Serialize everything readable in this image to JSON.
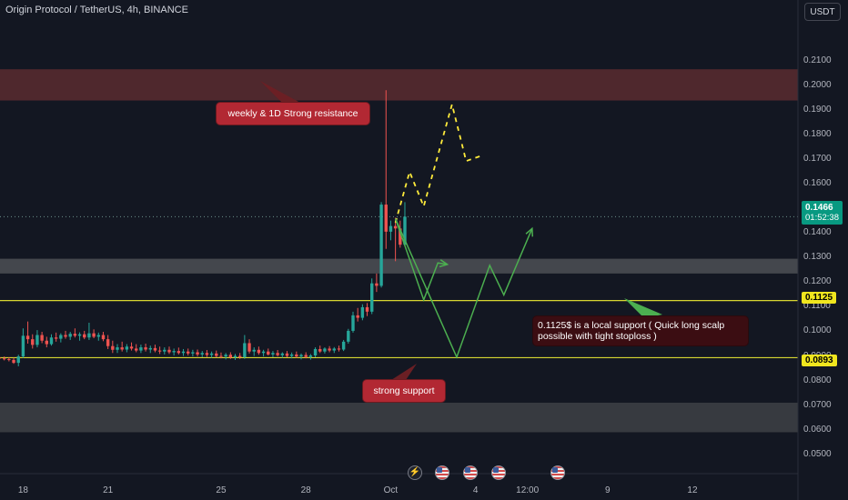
{
  "header": {
    "title": "Origin Protocol / TetherUS, 4h, BINANCE",
    "currency_button": "USDT"
  },
  "annotations": {
    "resistance": "weekly & 1D Strong resistance",
    "support": "strong support",
    "local_support": "0.1125$ is a local support ( Quick long scalp possible with tight stoploss )"
  },
  "price_tags": {
    "current_price": "0.1466",
    "countdown": "01:52:38",
    "level_upper": "0.1125",
    "level_lower": "0.0893"
  },
  "event_icons": [
    "lightning-event-icon",
    "us-flag-icon",
    "us-flag-icon",
    "us-flag-icon",
    "us-flag-icon"
  ],
  "colors": {
    "background": "#131722",
    "bull": "#26a69a",
    "bear": "#ef5350",
    "level_line": "#d6d631",
    "forecast_green": "#4caf50",
    "forecast_yellow": "#ffeb3b",
    "annotation_red": "#b22833",
    "price_tag_green": "#089981"
  },
  "chart_data": {
    "type": "candlestick",
    "title": "Origin Protocol / TetherUS, 4h, BINANCE",
    "y_ticks": [
      0.05,
      0.06,
      0.07,
      0.08,
      0.09,
      0.1,
      0.11,
      0.12,
      0.13,
      0.14,
      0.15,
      0.16,
      0.17,
      0.18,
      0.19,
      0.2,
      0.21
    ],
    "y_tick_labels": [
      "0.0500",
      "0.0600",
      "0.0700",
      "0.0800",
      "0.0900",
      "0.1000",
      "0.1100",
      "0.1200",
      "0.1300",
      "0.1400",
      "0.1500",
      "0.1600",
      "0.1700",
      "0.1800",
      "0.1900",
      "0.2000",
      "0.2100"
    ],
    "ylim": [
      0.0455,
      0.2195
    ],
    "x_tick_labels": [
      "18",
      "21",
      "25",
      "28",
      "Oct",
      "4",
      "12:00",
      "9",
      "12"
    ],
    "x_tick_index": [
      5,
      23,
      47,
      65,
      83,
      101,
      112,
      129,
      147
    ],
    "x_index_range": [
      0,
      173
    ],
    "candles": [
      {
        "o": 0.0893,
        "h": 0.0902,
        "l": 0.0885,
        "c": 0.089
      },
      {
        "o": 0.089,
        "h": 0.0898,
        "l": 0.0882,
        "c": 0.0887
      },
      {
        "o": 0.0887,
        "h": 0.0895,
        "l": 0.0878,
        "c": 0.0884
      },
      {
        "o": 0.0884,
        "h": 0.0893,
        "l": 0.0868,
        "c": 0.0872
      },
      {
        "o": 0.0872,
        "h": 0.0905,
        "l": 0.0858,
        "c": 0.0898
      },
      {
        "o": 0.0898,
        "h": 0.1012,
        "l": 0.0892,
        "c": 0.0982
      },
      {
        "o": 0.0982,
        "h": 0.104,
        "l": 0.095,
        "c": 0.0968
      },
      {
        "o": 0.0968,
        "h": 0.0988,
        "l": 0.093,
        "c": 0.0945
      },
      {
        "o": 0.0945,
        "h": 0.1005,
        "l": 0.0935,
        "c": 0.0985
      },
      {
        "o": 0.0985,
        "h": 0.0998,
        "l": 0.0952,
        "c": 0.0962
      },
      {
        "o": 0.0962,
        "h": 0.0978,
        "l": 0.0935,
        "c": 0.0948
      },
      {
        "o": 0.0948,
        "h": 0.0988,
        "l": 0.0942,
        "c": 0.0975
      },
      {
        "o": 0.0975,
        "h": 0.0995,
        "l": 0.0958,
        "c": 0.097
      },
      {
        "o": 0.097,
        "h": 0.0992,
        "l": 0.0955,
        "c": 0.0985
      },
      {
        "o": 0.0985,
        "h": 0.1002,
        "l": 0.097,
        "c": 0.0978
      },
      {
        "o": 0.0978,
        "h": 0.0998,
        "l": 0.0965,
        "c": 0.099
      },
      {
        "o": 0.099,
        "h": 0.1012,
        "l": 0.0975,
        "c": 0.0982
      },
      {
        "o": 0.0982,
        "h": 0.0996,
        "l": 0.0962,
        "c": 0.0988
      },
      {
        "o": 0.0988,
        "h": 0.1002,
        "l": 0.0968,
        "c": 0.0975
      },
      {
        "o": 0.0975,
        "h": 0.1035,
        "l": 0.0965,
        "c": 0.0992
      },
      {
        "o": 0.0992,
        "h": 0.1008,
        "l": 0.0972,
        "c": 0.0978
      },
      {
        "o": 0.0978,
        "h": 0.0995,
        "l": 0.0962,
        "c": 0.0985
      },
      {
        "o": 0.0985,
        "h": 0.0998,
        "l": 0.096,
        "c": 0.0968
      },
      {
        "o": 0.0968,
        "h": 0.0985,
        "l": 0.0928,
        "c": 0.094
      },
      {
        "o": 0.094,
        "h": 0.0962,
        "l": 0.0912,
        "c": 0.0925
      },
      {
        "o": 0.0925,
        "h": 0.0948,
        "l": 0.0912,
        "c": 0.0935
      },
      {
        "o": 0.0935,
        "h": 0.0958,
        "l": 0.0918,
        "c": 0.0926
      },
      {
        "o": 0.0926,
        "h": 0.0948,
        "l": 0.0915,
        "c": 0.0938
      },
      {
        "o": 0.0938,
        "h": 0.0955,
        "l": 0.0922,
        "c": 0.093
      },
      {
        "o": 0.093,
        "h": 0.0948,
        "l": 0.0915,
        "c": 0.0922
      },
      {
        "o": 0.0922,
        "h": 0.0946,
        "l": 0.0912,
        "c": 0.0935
      },
      {
        "o": 0.0935,
        "h": 0.095,
        "l": 0.0918,
        "c": 0.0926
      },
      {
        "o": 0.0926,
        "h": 0.0942,
        "l": 0.0912,
        "c": 0.0932
      },
      {
        "o": 0.0932,
        "h": 0.0946,
        "l": 0.0915,
        "c": 0.0922
      },
      {
        "o": 0.0922,
        "h": 0.0938,
        "l": 0.0908,
        "c": 0.0918
      },
      {
        "o": 0.0918,
        "h": 0.0935,
        "l": 0.0906,
        "c": 0.0925
      },
      {
        "o": 0.0925,
        "h": 0.0938,
        "l": 0.0908,
        "c": 0.0915
      },
      {
        "o": 0.0915,
        "h": 0.093,
        "l": 0.0902,
        "c": 0.092
      },
      {
        "o": 0.092,
        "h": 0.0934,
        "l": 0.0906,
        "c": 0.0912
      },
      {
        "o": 0.0912,
        "h": 0.0928,
        "l": 0.09,
        "c": 0.0918
      },
      {
        "o": 0.0918,
        "h": 0.093,
        "l": 0.0902,
        "c": 0.091
      },
      {
        "o": 0.091,
        "h": 0.0925,
        "l": 0.0898,
        "c": 0.0915
      },
      {
        "o": 0.0915,
        "h": 0.0926,
        "l": 0.0898,
        "c": 0.0906
      },
      {
        "o": 0.0906,
        "h": 0.092,
        "l": 0.0895,
        "c": 0.0912
      },
      {
        "o": 0.0912,
        "h": 0.0924,
        "l": 0.0896,
        "c": 0.0904
      },
      {
        "o": 0.0904,
        "h": 0.0918,
        "l": 0.0892,
        "c": 0.091
      },
      {
        "o": 0.091,
        "h": 0.0922,
        "l": 0.0894,
        "c": 0.09
      },
      {
        "o": 0.09,
        "h": 0.0914,
        "l": 0.089,
        "c": 0.0898
      },
      {
        "o": 0.0898,
        "h": 0.0912,
        "l": 0.0886,
        "c": 0.0905
      },
      {
        "o": 0.0905,
        "h": 0.0915,
        "l": 0.0888,
        "c": 0.0894
      },
      {
        "o": 0.0894,
        "h": 0.0908,
        "l": 0.0884,
        "c": 0.09
      },
      {
        "o": 0.09,
        "h": 0.0912,
        "l": 0.0888,
        "c": 0.0895
      },
      {
        "o": 0.0895,
        "h": 0.0985,
        "l": 0.0888,
        "c": 0.0952
      },
      {
        "o": 0.0952,
        "h": 0.0968,
        "l": 0.091,
        "c": 0.0918
      },
      {
        "o": 0.0918,
        "h": 0.0935,
        "l": 0.09,
        "c": 0.0925
      },
      {
        "o": 0.0925,
        "h": 0.0938,
        "l": 0.0905,
        "c": 0.0912
      },
      {
        "o": 0.0912,
        "h": 0.0925,
        "l": 0.0898,
        "c": 0.0918
      },
      {
        "o": 0.0918,
        "h": 0.093,
        "l": 0.0902,
        "c": 0.0906
      },
      {
        "o": 0.0906,
        "h": 0.092,
        "l": 0.0895,
        "c": 0.0912
      },
      {
        "o": 0.0912,
        "h": 0.0924,
        "l": 0.0898,
        "c": 0.0903
      },
      {
        "o": 0.0903,
        "h": 0.0915,
        "l": 0.0892,
        "c": 0.091
      },
      {
        "o": 0.091,
        "h": 0.092,
        "l": 0.0895,
        "c": 0.09
      },
      {
        "o": 0.09,
        "h": 0.0914,
        "l": 0.089,
        "c": 0.0906
      },
      {
        "o": 0.0906,
        "h": 0.0918,
        "l": 0.0892,
        "c": 0.0898
      },
      {
        "o": 0.0898,
        "h": 0.091,
        "l": 0.0886,
        "c": 0.0904
      },
      {
        "o": 0.0904,
        "h": 0.0915,
        "l": 0.089,
        "c": 0.0896
      },
      {
        "o": 0.0896,
        "h": 0.0908,
        "l": 0.0885,
        "c": 0.0902
      },
      {
        "o": 0.0902,
        "h": 0.0935,
        "l": 0.0895,
        "c": 0.0928
      },
      {
        "o": 0.0928,
        "h": 0.0942,
        "l": 0.0912,
        "c": 0.0918
      },
      {
        "o": 0.0918,
        "h": 0.0935,
        "l": 0.091,
        "c": 0.093
      },
      {
        "o": 0.093,
        "h": 0.094,
        "l": 0.0915,
        "c": 0.0922
      },
      {
        "o": 0.0922,
        "h": 0.0936,
        "l": 0.0912,
        "c": 0.093
      },
      {
        "o": 0.093,
        "h": 0.0942,
        "l": 0.0918,
        "c": 0.0926
      },
      {
        "o": 0.0926,
        "h": 0.0965,
        "l": 0.092,
        "c": 0.0958
      },
      {
        "o": 0.0958,
        "h": 0.101,
        "l": 0.095,
        "c": 0.1002
      },
      {
        "o": 0.1002,
        "h": 0.108,
        "l": 0.0995,
        "c": 0.1065
      },
      {
        "o": 0.1065,
        "h": 0.1095,
        "l": 0.104,
        "c": 0.1055
      },
      {
        "o": 0.1055,
        "h": 0.111,
        "l": 0.1045,
        "c": 0.1098
      },
      {
        "o": 0.1098,
        "h": 0.1115,
        "l": 0.1062,
        "c": 0.108
      },
      {
        "o": 0.108,
        "h": 0.1215,
        "l": 0.107,
        "c": 0.1195
      },
      {
        "o": 0.1195,
        "h": 0.1235,
        "l": 0.116,
        "c": 0.1185
      },
      {
        "o": 0.1185,
        "h": 0.1525,
        "l": 0.1178,
        "c": 0.1515
      },
      {
        "o": 0.1515,
        "h": 0.198,
        "l": 0.1335,
        "c": 0.1405
      },
      {
        "o": 0.1405,
        "h": 0.145,
        "l": 0.137,
        "c": 0.1428
      },
      {
        "o": 0.1428,
        "h": 0.1462,
        "l": 0.1285,
        "c": 0.1418
      },
      {
        "o": 0.1418,
        "h": 0.145,
        "l": 0.134,
        "c": 0.1352
      },
      {
        "o": 0.1352,
        "h": 0.1525,
        "l": 0.1345,
        "c": 0.1466
      }
    ],
    "forecast_yellow": [
      [
        84,
        0.1442
      ],
      [
        87,
        0.1648
      ],
      [
        90,
        0.1508
      ],
      [
        96,
        0.1922
      ],
      [
        99,
        0.1692
      ],
      [
        102,
        0.1712
      ]
    ],
    "forecast_green_short": [
      [
        84,
        0.1458
      ],
      [
        90,
        0.1128
      ],
      [
        93,
        0.1278
      ],
      [
        95,
        0.1272
      ]
    ],
    "forecast_green_long": [
      [
        84,
        0.1458
      ],
      [
        97,
        0.0895
      ],
      [
        104,
        0.1268
      ],
      [
        107,
        0.1148
      ],
      [
        113,
        0.1418
      ]
    ],
    "resistance_zone": [
      0.1938,
      0.2065
    ],
    "support_zone_1": [
      0.1235,
      0.1295
    ],
    "support_zone_2": [
      0.059,
      0.071
    ],
    "levels": [
      0.1125,
      0.0893
    ],
    "current_price": 0.1466,
    "last_tick_value": 0.0982,
    "grid": false
  }
}
